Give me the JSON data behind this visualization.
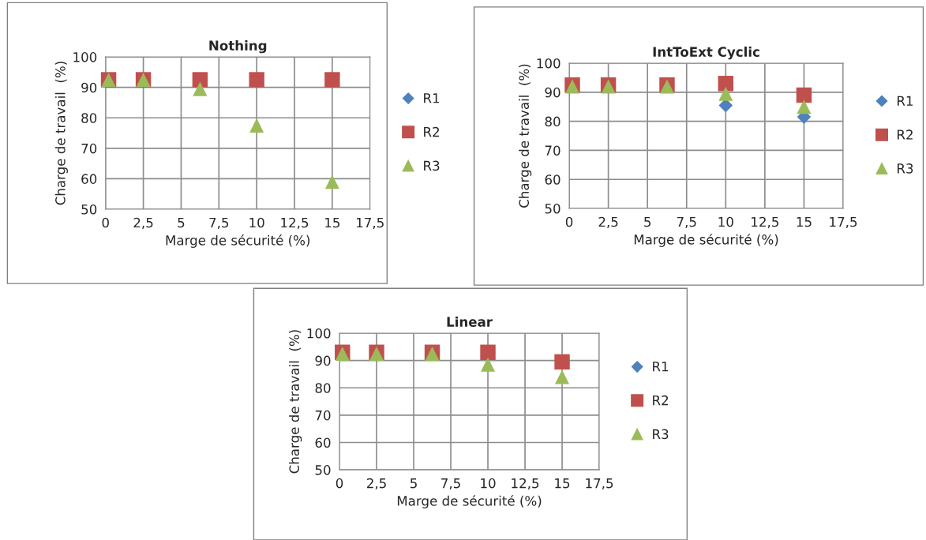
{
  "chart_data": [
    {
      "type": "scatter",
      "title": "Nothing",
      "xlabel": "Marge de sécurité (%)",
      "ylabel": "Charge de travail  (%)",
      "x": [
        0.2,
        2.5,
        6.25,
        10,
        15
      ],
      "xlim": [
        0,
        17.5
      ],
      "xticks": [
        0,
        {
          "value": 2.5,
          "label": "2,5"
        },
        5,
        {
          "value": 7.5,
          "label": "7,5"
        },
        10,
        {
          "value": 12.5,
          "label": "12,5"
        },
        15,
        {
          "value": 17.5,
          "label": "17,5"
        }
      ],
      "ylim": [
        50,
        100
      ],
      "yticks": [
        50,
        60,
        70,
        80,
        90,
        100
      ],
      "grid": true,
      "legend": "right",
      "series": [
        {
          "name": "R1",
          "color": "#4f81bd",
          "marker": "diamond",
          "values": [
            null,
            null,
            null,
            null,
            null
          ]
        },
        {
          "name": "R2",
          "color": "#c0504d",
          "marker": "square",
          "values": [
            92.5,
            92.5,
            92.5,
            92.5,
            92.5
          ]
        },
        {
          "name": "R3",
          "color": "#9bbb59",
          "marker": "triangle",
          "values": [
            92.5,
            92.5,
            89.5,
            77.5,
            59
          ]
        }
      ]
    },
    {
      "type": "scatter",
      "title": "IntToExt Cyclic",
      "xlabel": "Marge de sécurité (%)",
      "ylabel": "Charge de travail  (%)",
      "x": [
        0.2,
        2.5,
        6.25,
        10,
        15
      ],
      "xlim": [
        0,
        17.5
      ],
      "xticks": [
        0,
        {
          "value": 2.5,
          "label": "2,5"
        },
        5,
        {
          "value": 7.5,
          "label": "7,5"
        },
        10,
        {
          "value": 12.5,
          "label": "12,5"
        },
        15,
        {
          "value": 17.5,
          "label": "17,5"
        }
      ],
      "ylim": [
        50,
        100
      ],
      "yticks": [
        50,
        60,
        70,
        80,
        90,
        100
      ],
      "grid": true,
      "legend": "right",
      "series": [
        {
          "name": "R1",
          "color": "#4f81bd",
          "marker": "diamond",
          "values": [
            null,
            null,
            null,
            85.5,
            81.5
          ]
        },
        {
          "name": "R2",
          "color": "#c0504d",
          "marker": "square",
          "values": [
            92.5,
            92.5,
            92.5,
            93,
            89
          ]
        },
        {
          "name": "R3",
          "color": "#9bbb59",
          "marker": "triangle",
          "values": [
            92,
            92,
            92,
            89.5,
            85
          ]
        }
      ]
    },
    {
      "type": "scatter",
      "title": "Linear",
      "xlabel": "Marge de sécurité (%)",
      "ylabel": "Charge de travail  (%)",
      "x": [
        0.2,
        2.5,
        6.25,
        10,
        15
      ],
      "xlim": [
        0,
        17.5
      ],
      "xticks": [
        0,
        {
          "value": 2.5,
          "label": "2,5"
        },
        5,
        {
          "value": 7.5,
          "label": "7,5"
        },
        10,
        {
          "value": 12.5,
          "label": "12,5"
        },
        15,
        {
          "value": 17.5,
          "label": "17,5"
        }
      ],
      "ylim": [
        50,
        100
      ],
      "yticks": [
        50,
        60,
        70,
        80,
        90,
        100
      ],
      "grid": true,
      "legend": "right",
      "series": [
        {
          "name": "R1",
          "color": "#4f81bd",
          "marker": "diamond",
          "values": [
            null,
            null,
            null,
            null,
            null
          ]
        },
        {
          "name": "R2",
          "color": "#c0504d",
          "marker": "square",
          "values": [
            93,
            93,
            93,
            93,
            89.5
          ]
        },
        {
          "name": "R3",
          "color": "#9bbb59",
          "marker": "triangle",
          "values": [
            92.5,
            92.5,
            92.5,
            88.5,
            84
          ]
        }
      ]
    }
  ]
}
